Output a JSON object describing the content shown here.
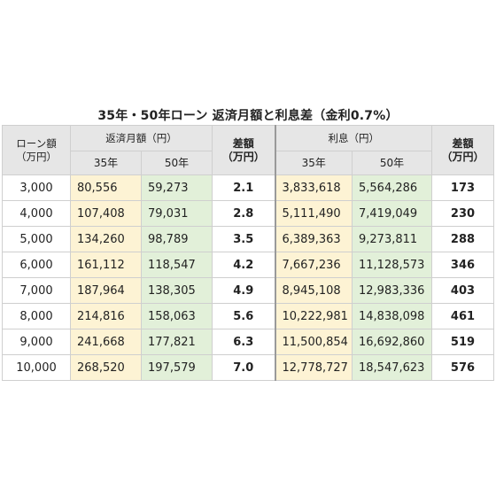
{
  "title": "35年・50年ローン 返済月額と利息差（金利0.7%）",
  "headers": {
    "loan_amount": [
      "ローン額",
      "（万円）"
    ],
    "monthly_group": "返済月額（円）",
    "monthly_diff": [
      "差額",
      "（万円）"
    ],
    "interest_group": "利息（円）",
    "interest_diff": [
      "差額",
      "（万円）"
    ],
    "col_35": "35年",
    "col_50": "50年"
  },
  "rows": [
    {
      "amount": "3,000",
      "m35": "80,556",
      "m50": "59,273",
      "mdiff": "2.1",
      "i35": "3,833,618",
      "i50": "5,564,286",
      "idiff": "173"
    },
    {
      "amount": "4,000",
      "m35": "107,408",
      "m50": "79,031",
      "mdiff": "2.8",
      "i35": "5,111,490",
      "i50": "7,419,049",
      "idiff": "230"
    },
    {
      "amount": "5,000",
      "m35": "134,260",
      "m50": "98,789",
      "mdiff": "3.5",
      "i35": "6,389,363",
      "i50": "9,273,811",
      "idiff": "288"
    },
    {
      "amount": "6,000",
      "m35": "161,112",
      "m50": "118,547",
      "mdiff": "4.2",
      "i35": "7,667,236",
      "i50": "11,128,573",
      "idiff": "346"
    },
    {
      "amount": "7,000",
      "m35": "187,964",
      "m50": "138,305",
      "mdiff": "4.9",
      "i35": "8,945,108",
      "i50": "12,983,336",
      "idiff": "403"
    },
    {
      "amount": "8,000",
      "m35": "214,816",
      "m50": "158,063",
      "mdiff": "5.6",
      "i35": "10,222,981",
      "i50": "14,838,098",
      "idiff": "461"
    },
    {
      "amount": "9,000",
      "m35": "241,668",
      "m50": "177,821",
      "mdiff": "6.3",
      "i35": "11,500,854",
      "i50": "16,692,860",
      "idiff": "519"
    },
    {
      "amount": "10,000",
      "m35": "268,520",
      "m50": "197,579",
      "mdiff": "7.0",
      "i35": "12,778,727",
      "i50": "18,547,623",
      "idiff": "576"
    }
  ]
}
